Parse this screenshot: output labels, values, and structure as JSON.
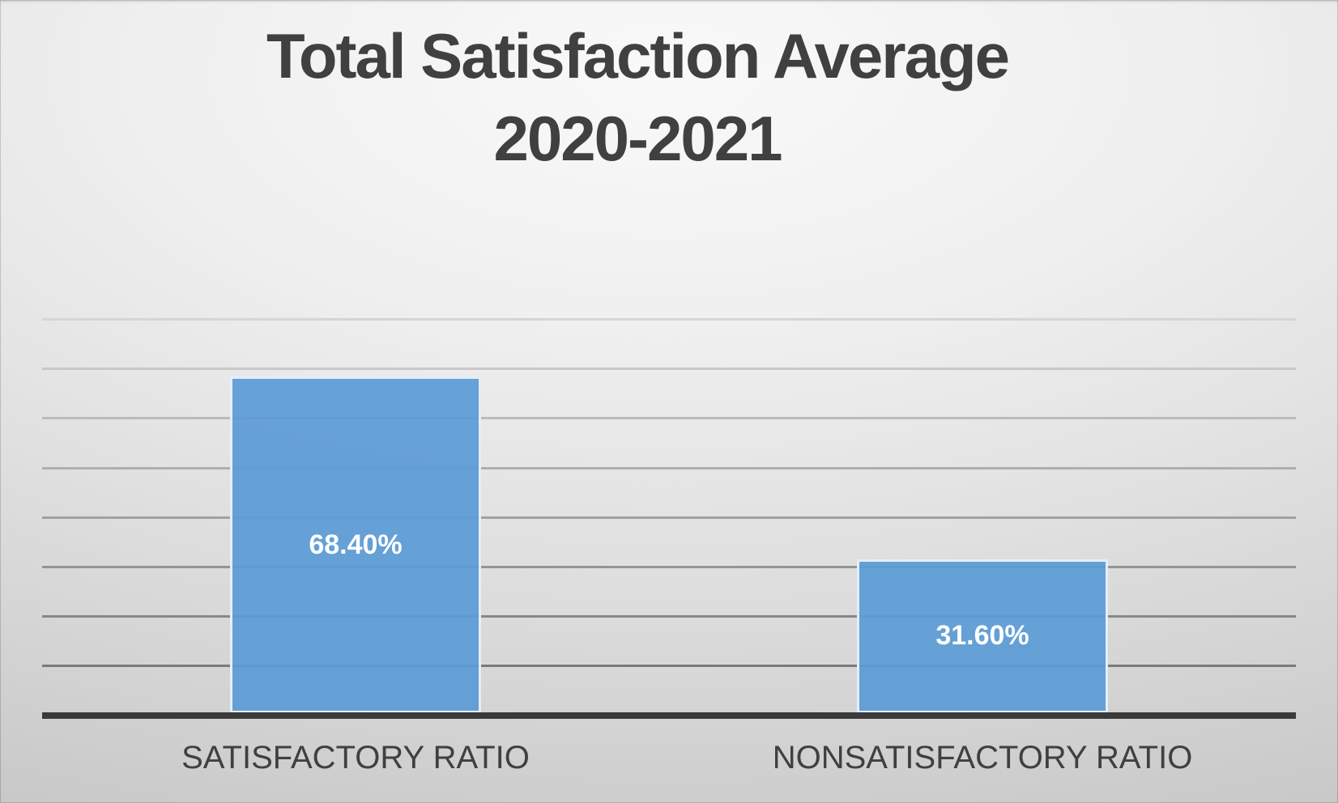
{
  "chart_data": {
    "type": "bar",
    "title": "Total Satisfaction Average 2020-2021",
    "title_lines": [
      "Total Satisfaction Average",
      "2020-2021"
    ],
    "categories": [
      "SATISFACTORY RATIO",
      "NONSATISFACTORY RATIO"
    ],
    "values": [
      68.4,
      31.6
    ],
    "value_labels": [
      "68.40%",
      "31.60%"
    ],
    "xlabel": "",
    "ylabel": "",
    "ylim": [
      0,
      80
    ],
    "gridline_step_percent": 10,
    "grid": true,
    "legend_position": "none",
    "value_label_position": "center",
    "colors": {
      "bar_fill": "#5b9bd5",
      "bar_border": "#e4eefa",
      "value_label_text": "#ffffff",
      "axis_line": "#3a3a3a",
      "gridline_bottom": "#7a7a7a",
      "gridline_top": "#d5d5d5",
      "title_text": "#404040",
      "category_text": "#404040",
      "background_light": "#f9f9f9",
      "background_dark": "#c2c2c2"
    }
  }
}
